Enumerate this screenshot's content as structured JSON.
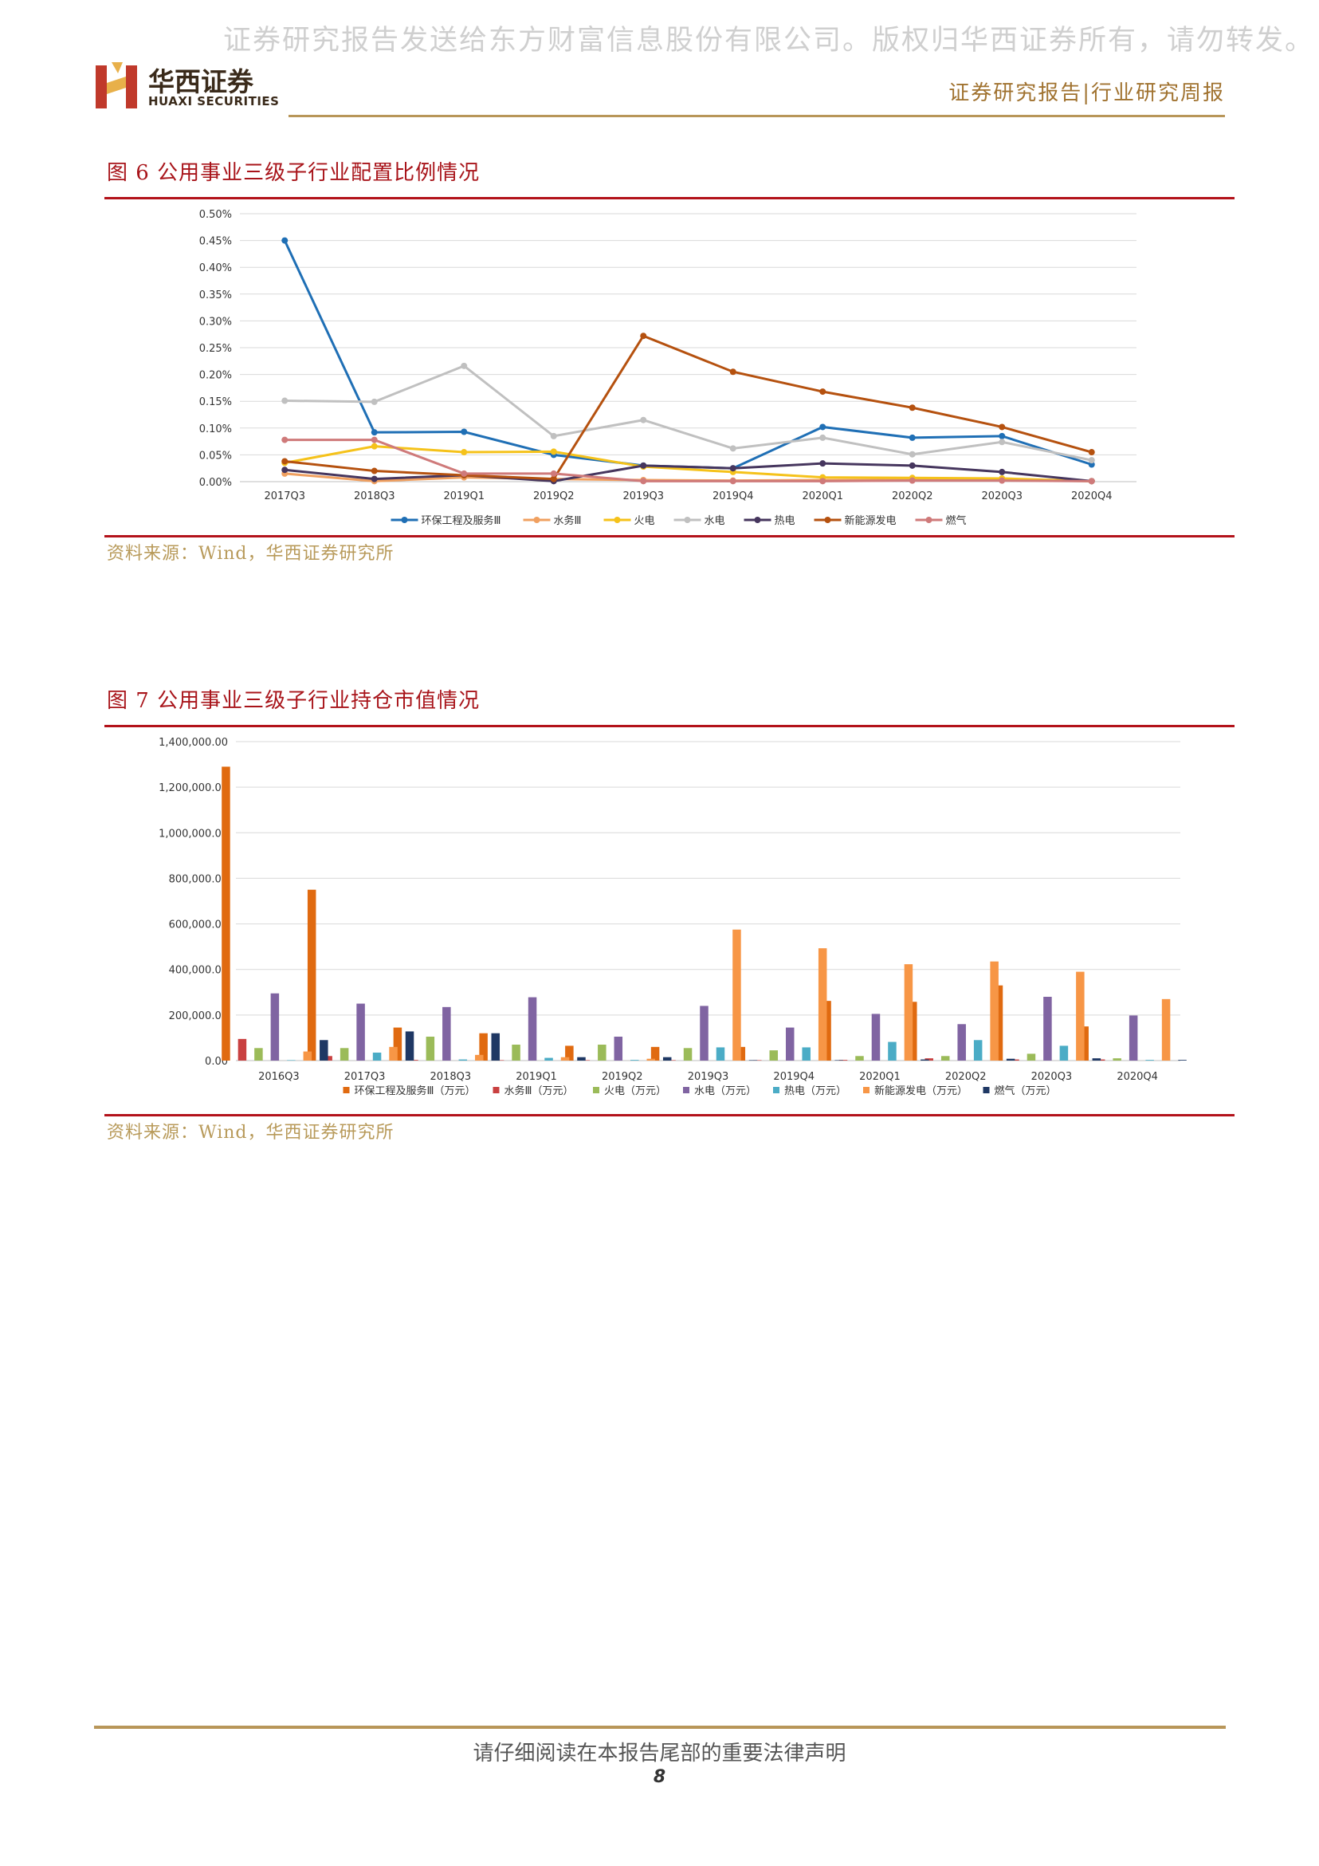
{
  "watermark": "证券研究报告发送给东方财富信息股份有限公司。版权归华西证券所有，请勿转发。 p8",
  "logo": {
    "cn": "华西证券",
    "en": "HUAXI SECURITIES",
    "icon": "huaxi-h-logo"
  },
  "header": {
    "report_type": "证券研究报告|行业研究周报"
  },
  "colors": {
    "title_red": "#a8141a",
    "gold": "#b89659",
    "source": "#b89a5a"
  },
  "fig6": {
    "title": "图 6  公用事业三级子行业配置比例情况",
    "source": "资料来源：Wind，华西证券研究所",
    "chart_data": {
      "type": "line",
      "title": "",
      "x": [
        "2017Q3",
        "2018Q3",
        "2019Q1",
        "2019Q2",
        "2019Q3",
        "2019Q4",
        "2020Q1",
        "2020Q2",
        "2020Q3",
        "2020Q4"
      ],
      "ylim": [
        0,
        0.5
      ],
      "yticks": [
        "0.00%",
        "0.05%",
        "0.10%",
        "0.15%",
        "0.20%",
        "0.25%",
        "0.30%",
        "0.35%",
        "0.40%",
        "0.45%",
        "0.50%"
      ],
      "grid": true,
      "legend": "bottom",
      "series": [
        {
          "name": "环保工程及服务Ⅲ",
          "color": "#1f6fb5",
          "values": [
            0.45,
            0.092,
            0.093,
            0.05,
            0.03,
            0.025,
            0.102,
            0.082,
            0.085,
            0.032
          ]
        },
        {
          "name": "水务Ⅲ",
          "color": "#f0a060",
          "values": [
            0.015,
            0.001,
            0.008,
            0.005,
            0.003,
            0.002,
            0.003,
            0.003,
            0.003,
            0.001
          ]
        },
        {
          "name": "火电",
          "color": "#f5c21a",
          "values": [
            0.035,
            0.066,
            0.055,
            0.056,
            0.028,
            0.018,
            0.008,
            0.007,
            0.006,
            0.001
          ]
        },
        {
          "name": "水电",
          "color": "#c0c0c0",
          "values": [
            0.151,
            0.149,
            0.216,
            0.085,
            0.115,
            0.062,
            0.082,
            0.051,
            0.074,
            0.04
          ]
        },
        {
          "name": "热电",
          "color": "#46365e",
          "values": [
            0.022,
            0.005,
            0.012,
            0.001,
            0.03,
            0.025,
            0.034,
            0.03,
            0.018,
            0.001
          ]
        },
        {
          "name": "新能源发电",
          "color": "#b5510f",
          "values": [
            0.038,
            0.02,
            0.012,
            0.005,
            0.272,
            0.205,
            0.168,
            0.138,
            0.102,
            0.055
          ]
        },
        {
          "name": "燃气",
          "color": "#cf7a7a",
          "values": [
            0.078,
            0.078,
            0.015,
            0.015,
            0.001,
            0.001,
            0.001,
            0.002,
            0.002,
            0.001
          ]
        }
      ]
    }
  },
  "fig7": {
    "title": "图 7  公用事业三级子行业持仓市值情况",
    "source": "资料来源：Wind，华西证券研究所",
    "chart_data": {
      "type": "bar",
      "title": "",
      "categories": [
        "2016Q3",
        "2017Q3",
        "2018Q3",
        "2019Q1",
        "2019Q2",
        "2019Q3",
        "2019Q4",
        "2020Q1",
        "2020Q2",
        "2020Q3",
        "2020Q4"
      ],
      "ylim": [
        0,
        1400000
      ],
      "yticks": [
        "0.00",
        "200,000.00",
        "400,000.00",
        "600,000.00",
        "800,000.00",
        "1,000,000.00",
        "1,200,000.00",
        "1,400,000.00"
      ],
      "grid": true,
      "legend": "bottom",
      "series": [
        {
          "name": "环保工程及服务Ⅲ（万元）",
          "color": "#e06a10",
          "values": [
            1290000,
            750000,
            145000,
            120000,
            65000,
            60000,
            60000,
            262000,
            258000,
            330000,
            150000
          ]
        },
        {
          "name": "水务Ⅲ（万元）",
          "color": "#c94040",
          "values": [
            95000,
            20000,
            3000,
            2000,
            2000,
            2000,
            2000,
            3000,
            10000,
            5000,
            5000
          ]
        },
        {
          "name": "火电（万元）",
          "color": "#9bbb59",
          "values": [
            55000,
            55000,
            105000,
            70000,
            70000,
            55000,
            45000,
            20000,
            20000,
            30000,
            10000
          ]
        },
        {
          "name": "水电（万元）",
          "color": "#8064a2",
          "values": [
            295000,
            250000,
            235000,
            278000,
            105000,
            240000,
            145000,
            205000,
            160000,
            280000,
            198000
          ]
        },
        {
          "name": "热电（万元）",
          "color": "#4bacc6",
          "values": [
            2000,
            35000,
            5000,
            12000,
            3000,
            58000,
            58000,
            82000,
            90000,
            65000,
            3000
          ]
        },
        {
          "name": "新能源发电（万元）",
          "color": "#f79646",
          "values": [
            40000,
            60000,
            25000,
            15000,
            8000,
            575000,
            493000,
            423000,
            435000,
            390000,
            270000
          ]
        },
        {
          "name": "燃气（万元）",
          "color": "#1f3864",
          "values": [
            90000,
            128000,
            120000,
            15000,
            15000,
            2000,
            2000,
            5000,
            8000,
            10000,
            3000
          ]
        }
      ]
    }
  },
  "footer": {
    "disclaimer": "请仔细阅读在本报告尾部的重要法律声明",
    "page": "8"
  }
}
